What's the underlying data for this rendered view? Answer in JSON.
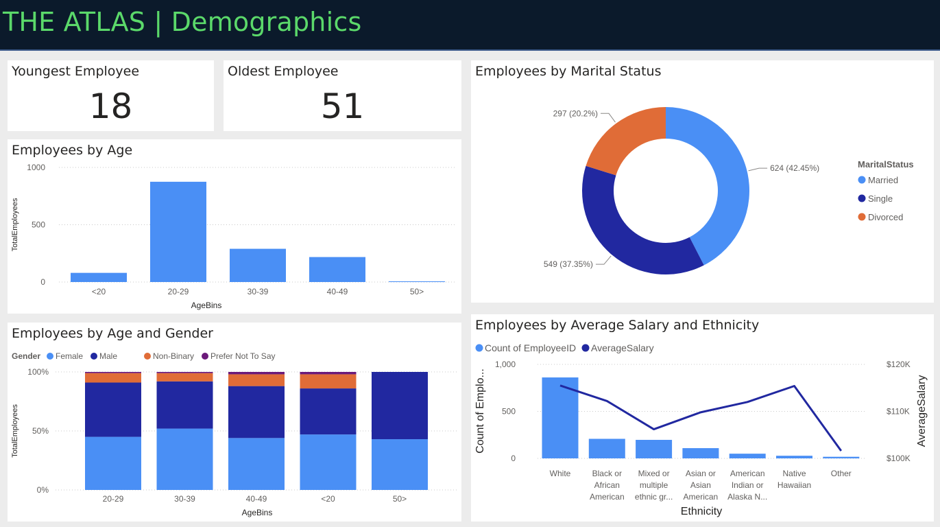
{
  "header": {
    "title": "THE ATLAS | Demographics"
  },
  "kpis": [
    {
      "title": "Youngest Employee",
      "value": "18"
    },
    {
      "title": "Oldest Employee",
      "value": "51"
    }
  ],
  "colors": {
    "female": "#4a8ff5",
    "male": "#2128a0",
    "nonbinary": "#e06c37",
    "prefer_not": "#6b1a7a",
    "married": "#4a8ff5",
    "single": "#2128a0",
    "divorced": "#e06c37",
    "line": "#2128a0"
  },
  "chart_data": [
    {
      "id": "age",
      "type": "bar",
      "title": "Employees by Age",
      "xlabel": "AgeBins",
      "ylabel": "TotalEmployees",
      "categories": [
        "<20",
        "20-29",
        "30-39",
        "40-49",
        "50>"
      ],
      "values": [
        80,
        875,
        290,
        218,
        6
      ],
      "ylim": [
        0,
        1000
      ],
      "yticks": [
        "0",
        "500",
        "1000"
      ],
      "grid": true
    },
    {
      "id": "marital",
      "type": "pie",
      "title": "Employees by Marital Status",
      "legend_title": "MaritalStatus",
      "legend_position": "right",
      "labels": [
        "Married",
        "Single",
        "Divorced"
      ],
      "values": [
        624,
        549,
        297
      ],
      "data_labels": [
        "624 (42.45%)",
        "549 (37.35%)",
        "297 (20.2%)"
      ]
    },
    {
      "id": "age_gender",
      "type": "bar",
      "stacked": "percent",
      "title": "Employees by Age and Gender",
      "legend_title": "Gender",
      "legend_position": "top-left",
      "xlabel": "AgeBins",
      "ylabel": "TotalEmployees",
      "categories": [
        "20-29",
        "30-39",
        "40-49",
        "<20",
        "50>"
      ],
      "yticks": [
        "0%",
        "50%",
        "100%"
      ],
      "series": [
        {
          "name": "Female",
          "values": [
            45,
            52,
            44,
            47,
            43
          ]
        },
        {
          "name": "Male",
          "values": [
            46,
            40,
            44,
            39,
            57
          ]
        },
        {
          "name": "Non-Binary",
          "values": [
            8,
            7,
            10,
            12,
            0
          ]
        },
        {
          "name": "Prefer Not To Say",
          "values": [
            1,
            1,
            2,
            2,
            0
          ]
        }
      ]
    },
    {
      "id": "salary_ethnicity",
      "type": "bar",
      "combo": "bar-line",
      "title": "Employees by Average Salary and Ethnicity",
      "legend_position": "top-left",
      "xlabel": "Ethnicity",
      "ylabel": "Count of Emplo...",
      "y2label": "AverageSalary",
      "categories": [
        [
          "White"
        ],
        [
          "Black or",
          "African",
          "American"
        ],
        [
          "Mixed or",
          "multiple",
          "ethnic gr..."
        ],
        [
          "Asian or",
          "Asian",
          "American"
        ],
        [
          "American",
          "Indian or",
          "Alaska N..."
        ],
        [
          "Native",
          "Hawaiian"
        ],
        [
          "Other"
        ]
      ],
      "ylim": [
        0,
        1000
      ],
      "yticks": [
        "0",
        "500",
        "1,000"
      ],
      "y2lim": [
        100000,
        120000
      ],
      "y2ticks": [
        "$100K",
        "$110K",
        "$120K"
      ],
      "series": [
        {
          "name": "Count of EmployeeID",
          "type": "bar",
          "values": [
            861,
            208,
            197,
            109,
            50,
            28,
            17
          ]
        },
        {
          "name": "AverageSalary",
          "type": "line",
          "values": [
            115500,
            112200,
            106200,
            109800,
            112000,
            115400,
            101600
          ]
        }
      ]
    }
  ]
}
